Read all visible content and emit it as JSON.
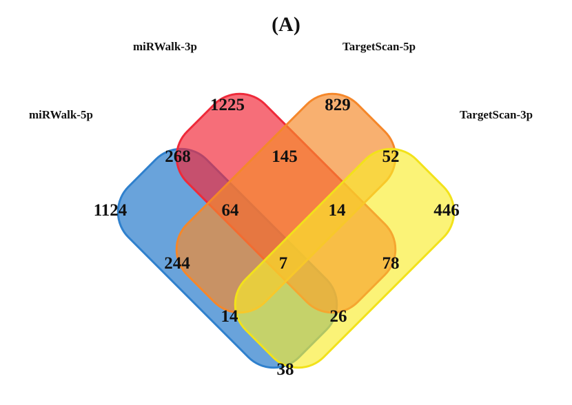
{
  "panel_label": "(A)",
  "sets": [
    {
      "id": "mirwalk5p",
      "label": "miRWalk-5p",
      "color": "#2f80cd"
    },
    {
      "id": "mirwalk3p",
      "label": "miRWalk-3p",
      "color": "#f12a3a"
    },
    {
      "id": "targetscan5p",
      "label": "TargetScan-5p",
      "color": "#f58a2c"
    },
    {
      "id": "targetscan3p",
      "label": "TargetScan-3p",
      "color": "#f8ec2b"
    }
  ],
  "regions": [
    {
      "id": "mirwalk3p-only",
      "value": "1225"
    },
    {
      "id": "targetscan5p-only",
      "value": "829"
    },
    {
      "id": "mirwalk5p-mirwalk3p",
      "value": "268"
    },
    {
      "id": "mirwalk3p-targetscan5p",
      "value": "145"
    },
    {
      "id": "targetscan5p-targetscan3p",
      "value": "52"
    },
    {
      "id": "mirwalk5p-only",
      "value": "1124"
    },
    {
      "id": "mirwalk5p-mirwalk3p-targetscan5p",
      "value": "64"
    },
    {
      "id": "mirwalk3p-targetscan5p-targetscan3p",
      "value": "14"
    },
    {
      "id": "targetscan3p-only",
      "value": "446"
    },
    {
      "id": "mirwalk5p-targetscan5p",
      "value": "244"
    },
    {
      "id": "all-four",
      "value": "7"
    },
    {
      "id": "mirwalk3p-targetscan3p",
      "value": "78"
    },
    {
      "id": "mirwalk5p-targetscan5p-targetscan3p",
      "value": "14"
    },
    {
      "id": "mirwalk5p-mirwalk3p-targetscan3p",
      "value": "26"
    },
    {
      "id": "mirwalk5p-targetscan3p",
      "value": "38"
    }
  ]
}
